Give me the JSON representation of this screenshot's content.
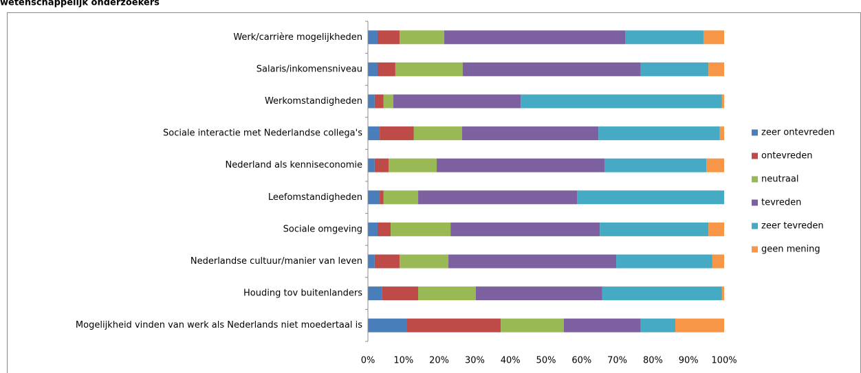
{
  "chart_data": {
    "type": "stacked_barh",
    "title": "wetenschappelijk onderzoekers",
    "categories": [
      "Werk/carrière  mogelijkheden",
      "Salaris/inkomensniveau",
      "Werkomstandigheden",
      "Sociale interactie met Nederlandse collega's",
      "Nederland als kenniseconomie",
      "Leefomstandigheden",
      "Sociale omgeving",
      "Nederlandse cultuur/manier van leven",
      "Houding tov buitenlanders",
      "Mogelijkheid vinden van werk als Nederlands niet moedertaal is"
    ],
    "series": [
      {
        "name": "zeer ontevreden",
        "color": "#4a7ebb",
        "values": [
          2.7,
          2.7,
          1.9,
          3.3,
          1.9,
          3.3,
          2.7,
          1.9,
          3.9,
          11.0
        ]
      },
      {
        "name": "ontevreden",
        "color": "#be4b48",
        "values": [
          6.2,
          5.0,
          2.5,
          9.6,
          3.9,
          1.1,
          3.7,
          7.0,
          10.2,
          26.3
        ]
      },
      {
        "name": "neutraal",
        "color": "#98b954",
        "values": [
          12.5,
          18.9,
          2.7,
          13.5,
          13.5,
          9.7,
          16.8,
          13.7,
          16.2,
          17.7
        ]
      },
      {
        "name": "tevreden",
        "color": "#7d60a0",
        "values": [
          50.8,
          50.0,
          35.8,
          38.3,
          47.1,
          44.6,
          41.9,
          47.1,
          35.5,
          21.6
        ]
      },
      {
        "name": "zeer tevreden",
        "color": "#46aac5",
        "values": [
          22.0,
          19.0,
          56.5,
          34.1,
          28.6,
          41.3,
          30.5,
          27.0,
          33.6,
          9.7
        ]
      },
      {
        "name": "geen mening",
        "color": "#f79646",
        "values": [
          5.8,
          4.4,
          0.6,
          1.2,
          5.0,
          0,
          4.4,
          3.3,
          0.6,
          13.7
        ]
      }
    ],
    "xlim": [
      0,
      100
    ],
    "xticks": [
      {
        "value": 0,
        "label": "0%"
      },
      {
        "value": 10,
        "label": "10%"
      },
      {
        "value": 20,
        "label": "20%"
      },
      {
        "value": 30,
        "label": "30%"
      },
      {
        "value": 40,
        "label": "40%"
      },
      {
        "value": 50,
        "label": "50%"
      },
      {
        "value": 60,
        "label": "60%"
      },
      {
        "value": 70,
        "label": "70%"
      },
      {
        "value": 80,
        "label": "80%"
      },
      {
        "value": 90,
        "label": "90%"
      },
      {
        "value": 100,
        "label": "100%"
      }
    ],
    "legend": "right"
  }
}
